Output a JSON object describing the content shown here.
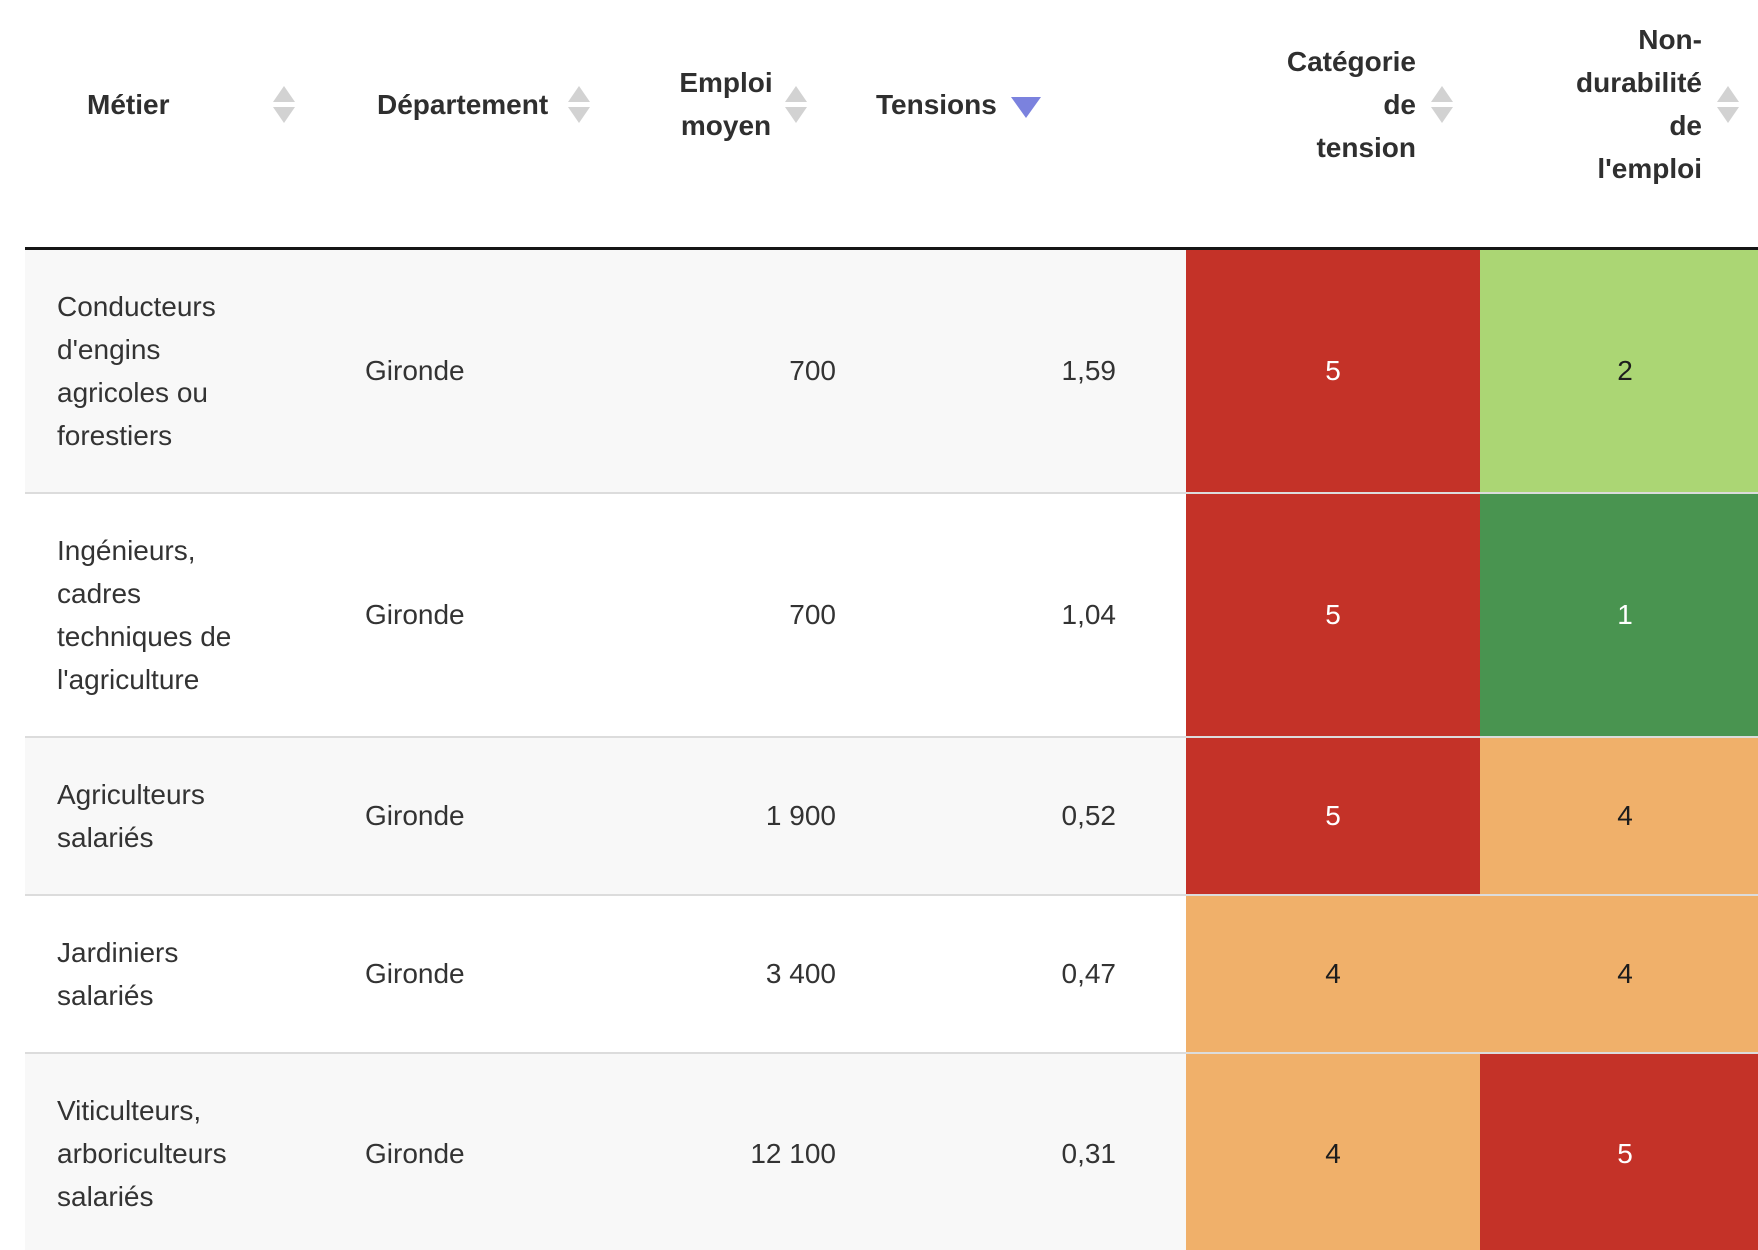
{
  "table": {
    "header": {
      "columns": [
        {
          "id": "metier",
          "label": "Métier",
          "sort_state": "none"
        },
        {
          "id": "departement",
          "label": "Département",
          "sort_state": "none"
        },
        {
          "id": "emploi_moyen",
          "label": "Emploi\nmoyen",
          "sort_state": "none"
        },
        {
          "id": "tensions",
          "label": "Tensions",
          "sort_state": "desc"
        },
        {
          "id": "categorie_tension",
          "label": "Catégorie\nde\ntension",
          "sort_state": "none"
        },
        {
          "id": "non_durabilite",
          "label": "Non-\ndurabilité\nde\nl'emploi",
          "sort_state": "none"
        }
      ]
    },
    "rows": [
      {
        "metier": "Conducteurs\nd'engins\nagricoles ou\nforestiers",
        "departement": "Gironde",
        "emploi_moyen": "700",
        "tensions": "1,59",
        "categorie_tension": {
          "value": "5",
          "bg": "#c43228",
          "fg": "#ffffff"
        },
        "non_durabilite": {
          "value": "2",
          "bg": "#abd674",
          "fg": "#1d1d1d"
        }
      },
      {
        "metier": "Ingénieurs,\ncadres\ntechniques de\nl'agriculture",
        "departement": "Gironde",
        "emploi_moyen": "700",
        "tensions": "1,04",
        "categorie_tension": {
          "value": "5",
          "bg": "#c43228",
          "fg": "#ffffff"
        },
        "non_durabilite": {
          "value": "1",
          "bg": "#499450",
          "fg": "#ffffff"
        }
      },
      {
        "metier": "Agriculteurs\nsalariés",
        "departement": "Gironde",
        "emploi_moyen": "1 900",
        "tensions": "0,52",
        "categorie_tension": {
          "value": "5",
          "bg": "#c43228",
          "fg": "#ffffff"
        },
        "non_durabilite": {
          "value": "4",
          "bg": "#f0b06a",
          "fg": "#1d1d1d"
        }
      },
      {
        "metier": "Jardiniers\nsalariés",
        "departement": "Gironde",
        "emploi_moyen": "3 400",
        "tensions": "0,47",
        "categorie_tension": {
          "value": "4",
          "bg": "#f0b06a",
          "fg": "#1d1d1d"
        },
        "non_durabilite": {
          "value": "4",
          "bg": "#f0b06a",
          "fg": "#1d1d1d"
        }
      },
      {
        "metier": "Viticulteurs,\narboriculteurs\nsalariés",
        "departement": "Gironde",
        "emploi_moyen": "12 100",
        "tensions": "0,31",
        "categorie_tension": {
          "value": "4",
          "bg": "#f0b06a",
          "fg": "#1d1d1d"
        },
        "non_durabilite": {
          "value": "5",
          "bg": "#c43228",
          "fg": "#ffffff"
        }
      }
    ],
    "colors": {
      "level_red": "#c43228",
      "level_orange": "#f0b06a",
      "level_light_green": "#abd674",
      "level_dark_green": "#499450",
      "sort_active": "#7b82de",
      "sort_inactive": "#d2d2d2",
      "stripe_bg": "#f8f8f8",
      "header_border": "#161616",
      "row_divider": "#dcdcdc"
    }
  }
}
